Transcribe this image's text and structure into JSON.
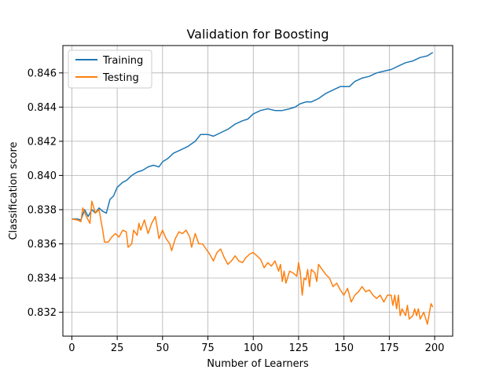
{
  "chart_data": {
    "type": "line",
    "title": "Validation for Boosting",
    "xlabel": "Number of Learners",
    "ylabel": "Classification score",
    "xlim": [
      -4.95,
      209.95
    ],
    "ylim": [
      0.8306,
      0.8476
    ],
    "xticks": [
      0,
      25,
      50,
      75,
      100,
      125,
      150,
      175,
      200
    ],
    "xtick_labels": [
      "0",
      "25",
      "50",
      "75",
      "100",
      "125",
      "150",
      "175",
      "200"
    ],
    "yticks": [
      0.832,
      0.834,
      0.836,
      0.838,
      0.84,
      0.842,
      0.844,
      0.846
    ],
    "ytick_labels": [
      "0.832",
      "0.834",
      "0.836",
      "0.838",
      "0.840",
      "0.842",
      "0.844",
      "0.846"
    ],
    "grid": true,
    "legend_position": "upper-left",
    "series": [
      {
        "name": "Training",
        "color": "#1f77b4",
        "points": [
          [
            0,
            0.83745
          ],
          [
            3,
            0.83745
          ],
          [
            5,
            0.8374
          ],
          [
            7,
            0.838
          ],
          [
            9,
            0.8376
          ],
          [
            11,
            0.838
          ],
          [
            13,
            0.8378
          ],
          [
            15,
            0.8381
          ],
          [
            17,
            0.8379
          ],
          [
            19,
            0.8378
          ],
          [
            21,
            0.8386
          ],
          [
            23,
            0.8388
          ],
          [
            25,
            0.8393
          ],
          [
            28,
            0.8396
          ],
          [
            30,
            0.8397
          ],
          [
            33,
            0.84
          ],
          [
            36,
            0.8402
          ],
          [
            39,
            0.8403
          ],
          [
            42,
            0.8405
          ],
          [
            45,
            0.8406
          ],
          [
            48,
            0.8405
          ],
          [
            50,
            0.8408
          ],
          [
            53,
            0.841
          ],
          [
            56,
            0.8413
          ],
          [
            60,
            0.8415
          ],
          [
            64,
            0.8417
          ],
          [
            68,
            0.842
          ],
          [
            71,
            0.8424
          ],
          [
            75,
            0.8424
          ],
          [
            78,
            0.8423
          ],
          [
            82,
            0.8425
          ],
          [
            86,
            0.8427
          ],
          [
            90,
            0.843
          ],
          [
            94,
            0.8432
          ],
          [
            97,
            0.8433
          ],
          [
            100,
            0.8436
          ],
          [
            104,
            0.8438
          ],
          [
            108,
            0.8439
          ],
          [
            112,
            0.8438
          ],
          [
            116,
            0.8438
          ],
          [
            120,
            0.8439
          ],
          [
            123,
            0.844
          ],
          [
            126,
            0.8442
          ],
          [
            129,
            0.8443
          ],
          [
            132,
            0.8443
          ],
          [
            136,
            0.8445
          ],
          [
            140,
            0.8448
          ],
          [
            144,
            0.845
          ],
          [
            148,
            0.8452
          ],
          [
            150,
            0.8452
          ],
          [
            153,
            0.8452
          ],
          [
            156,
            0.8455
          ],
          [
            160,
            0.8457
          ],
          [
            164,
            0.8458
          ],
          [
            168,
            0.846
          ],
          [
            172,
            0.8461
          ],
          [
            176,
            0.8462
          ],
          [
            180,
            0.8464
          ],
          [
            184,
            0.8466
          ],
          [
            188,
            0.8467
          ],
          [
            192,
            0.8469
          ],
          [
            196,
            0.847
          ],
          [
            199,
            0.8472
          ]
        ]
      },
      {
        "name": "Testing",
        "color": "#ff7f0e",
        "points": [
          [
            0,
            0.83745
          ],
          [
            3,
            0.8374
          ],
          [
            5,
            0.8373
          ],
          [
            6,
            0.8381
          ],
          [
            8,
            0.8376
          ],
          [
            10,
            0.8372
          ],
          [
            11,
            0.8385
          ],
          [
            13,
            0.8378
          ],
          [
            15,
            0.838
          ],
          [
            17,
            0.8368
          ],
          [
            18,
            0.8361
          ],
          [
            20,
            0.8361
          ],
          [
            22,
            0.8364
          ],
          [
            24,
            0.8366
          ],
          [
            26,
            0.8364
          ],
          [
            28,
            0.8368
          ],
          [
            30,
            0.8367
          ],
          [
            31,
            0.8358
          ],
          [
            33,
            0.836
          ],
          [
            34,
            0.8368
          ],
          [
            36,
            0.8365
          ],
          [
            37,
            0.8372
          ],
          [
            38,
            0.8368
          ],
          [
            40,
            0.8374
          ],
          [
            42,
            0.8366
          ],
          [
            44,
            0.8372
          ],
          [
            46,
            0.8376
          ],
          [
            47,
            0.837
          ],
          [
            48,
            0.8363
          ],
          [
            50,
            0.8368
          ],
          [
            52,
            0.8363
          ],
          [
            54,
            0.836
          ],
          [
            55,
            0.8356
          ],
          [
            57,
            0.8363
          ],
          [
            59,
            0.8367
          ],
          [
            61,
            0.8366
          ],
          [
            63,
            0.8368
          ],
          [
            65,
            0.8364
          ],
          [
            66,
            0.8358
          ],
          [
            68,
            0.8366
          ],
          [
            70,
            0.836
          ],
          [
            72,
            0.836
          ],
          [
            74,
            0.8357
          ],
          [
            76,
            0.8354
          ],
          [
            78,
            0.835
          ],
          [
            80,
            0.8355
          ],
          [
            82,
            0.8357
          ],
          [
            84,
            0.8352
          ],
          [
            86,
            0.8348
          ],
          [
            88,
            0.835
          ],
          [
            90,
            0.8353
          ],
          [
            92,
            0.835
          ],
          [
            94,
            0.8349
          ],
          [
            96,
            0.8352
          ],
          [
            98,
            0.8354
          ],
          [
            100,
            0.8355
          ],
          [
            102,
            0.8353
          ],
          [
            104,
            0.8351
          ],
          [
            106,
            0.8346
          ],
          [
            108,
            0.8349
          ],
          [
            110,
            0.8347
          ],
          [
            112,
            0.835
          ],
          [
            114,
            0.8344
          ],
          [
            115,
            0.8348
          ],
          [
            116,
            0.8338
          ],
          [
            117,
            0.8344
          ],
          [
            118,
            0.8337
          ],
          [
            120,
            0.8344
          ],
          [
            122,
            0.8343
          ],
          [
            124,
            0.8341
          ],
          [
            125,
            0.8349
          ],
          [
            126,
            0.8343
          ],
          [
            127,
            0.833
          ],
          [
            128,
            0.834
          ],
          [
            129,
            0.8339
          ],
          [
            130,
            0.8345
          ],
          [
            131,
            0.8335
          ],
          [
            132,
            0.8345
          ],
          [
            134,
            0.8343
          ],
          [
            135,
            0.8338
          ],
          [
            136,
            0.8348
          ],
          [
            138,
            0.8345
          ],
          [
            140,
            0.8342
          ],
          [
            142,
            0.834
          ],
          [
            144,
            0.8335
          ],
          [
            146,
            0.8337
          ],
          [
            148,
            0.8333
          ],
          [
            150,
            0.833
          ],
          [
            152,
            0.8334
          ],
          [
            154,
            0.8326
          ],
          [
            156,
            0.833
          ],
          [
            158,
            0.8332
          ],
          [
            160,
            0.8335
          ],
          [
            162,
            0.8332
          ],
          [
            164,
            0.8333
          ],
          [
            166,
            0.833
          ],
          [
            168,
            0.8328
          ],
          [
            170,
            0.833
          ],
          [
            172,
            0.8326
          ],
          [
            174,
            0.833
          ],
          [
            176,
            0.833
          ],
          [
            177,
            0.8324
          ],
          [
            178,
            0.833
          ],
          [
            179,
            0.8322
          ],
          [
            180,
            0.833
          ],
          [
            181,
            0.8318
          ],
          [
            182,
            0.8322
          ],
          [
            184,
            0.8318
          ],
          [
            185,
            0.8324
          ],
          [
            186,
            0.8316
          ],
          [
            188,
            0.8318
          ],
          [
            189,
            0.8322
          ],
          [
            190,
            0.8318
          ],
          [
            191,
            0.8322
          ],
          [
            192,
            0.8316
          ],
          [
            194,
            0.832
          ],
          [
            196,
            0.8313
          ],
          [
            197,
            0.8319
          ],
          [
            198,
            0.8325
          ],
          [
            199,
            0.8323
          ]
        ]
      }
    ]
  }
}
